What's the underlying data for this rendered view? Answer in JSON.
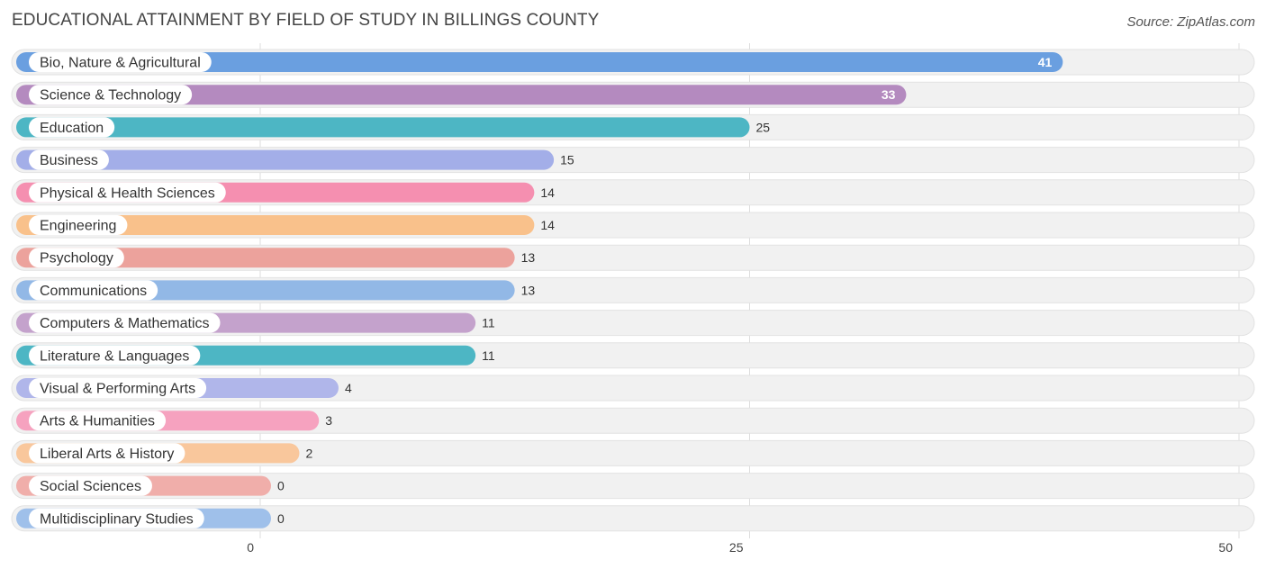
{
  "title": "EDUCATIONAL ATTAINMENT BY FIELD OF STUDY IN BILLINGS COUNTY",
  "source": "Source: ZipAtlas.com",
  "chart_data": {
    "type": "bar",
    "orientation": "horizontal",
    "categories": [
      "Bio, Nature & Agricultural",
      "Science & Technology",
      "Education",
      "Business",
      "Physical & Health Sciences",
      "Engineering",
      "Psychology",
      "Communications",
      "Computers & Mathematics",
      "Literature & Languages",
      "Visual & Performing Arts",
      "Arts & Humanities",
      "Liberal Arts & History",
      "Social Sciences",
      "Multidisciplinary Studies"
    ],
    "values": [
      41,
      33,
      25,
      15,
      14,
      14,
      13,
      13,
      11,
      11,
      4,
      3,
      2,
      0,
      0
    ],
    "colors": [
      "#6a9fe0",
      "#b48abf",
      "#4db6c4",
      "#a3aee8",
      "#f58fb0",
      "#f9c18b",
      "#eca29c",
      "#92b8e6",
      "#c4a2cc",
      "#4db6c4",
      "#b0b6ea",
      "#f6a2bf",
      "#f9c79c",
      "#f0aeaa",
      "#9fc0ea"
    ],
    "xlim": [
      0,
      50
    ],
    "xticks": [
      "0",
      "25",
      "50"
    ],
    "grid": true
  }
}
